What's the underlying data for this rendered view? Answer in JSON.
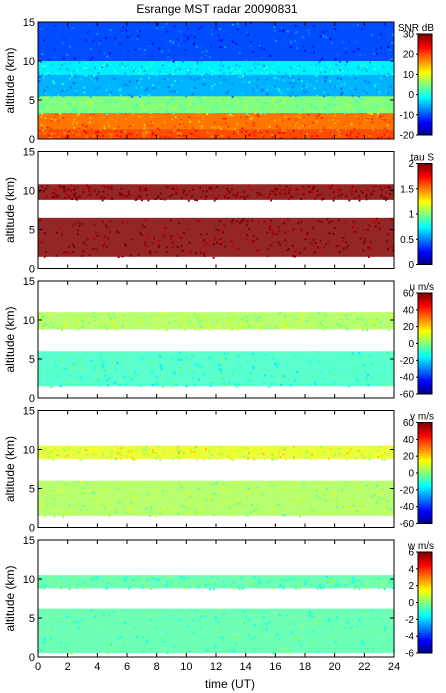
{
  "figure": {
    "title": "Esrange MST radar 20090831",
    "xlabel": "time (UT)"
  },
  "chart_data": [
    {
      "type": "heatmap",
      "id": "snr",
      "ylabel": "altitude (km)",
      "xlim": [
        0,
        24
      ],
      "ylim": [
        0,
        15
      ],
      "xticks": [
        0,
        2,
        4,
        6,
        8,
        10,
        12,
        14,
        16,
        18,
        20,
        22,
        24
      ],
      "yticks": [
        0,
        5,
        10,
        15
      ],
      "colorbar": {
        "label": "SNR dB",
        "range": [
          -20,
          30
        ],
        "ticks": [
          -20,
          -10,
          0,
          10,
          20,
          30
        ]
      },
      "layers": [
        {
          "alt": [
            0,
            1.2
          ],
          "value": 20
        },
        {
          "alt": [
            1.2,
            3.3
          ],
          "value": 18
        },
        {
          "alt": [
            3.3,
            5.5
          ],
          "value": 5
        },
        {
          "alt": [
            5.5,
            8.2
          ],
          "value": -5
        },
        {
          "alt": [
            8.2,
            10.0
          ],
          "value": -2
        },
        {
          "alt": [
            10.0,
            15
          ],
          "value": -10
        }
      ]
    },
    {
      "type": "heatmap",
      "id": "tau",
      "ylabel": "altitude (km)",
      "xlim": [
        0,
        24
      ],
      "ylim": [
        0,
        15
      ],
      "xticks": [
        0,
        2,
        4,
        6,
        8,
        10,
        12,
        14,
        16,
        18,
        20,
        22,
        24
      ],
      "yticks": [
        0,
        5,
        10,
        15
      ],
      "colorbar": {
        "label": "tau S",
        "range": [
          0,
          2
        ],
        "ticks": [
          0,
          0.5,
          1,
          1.5,
          2
        ]
      },
      "layers": [
        {
          "alt": [
            1.5,
            6.5
          ],
          "value": 2.0
        },
        {
          "alt": [
            8.8,
            10.8
          ],
          "value": 2.0
        }
      ]
    },
    {
      "type": "heatmap",
      "id": "u",
      "ylabel": "altitude (km)",
      "xlim": [
        0,
        24
      ],
      "ylim": [
        0,
        15
      ],
      "xticks": [
        0,
        2,
        4,
        6,
        8,
        10,
        12,
        14,
        16,
        18,
        20,
        22,
        24
      ],
      "yticks": [
        0,
        5,
        10,
        15
      ],
      "colorbar": {
        "label": "u m/s",
        "range": [
          -60,
          60
        ],
        "ticks": [
          -60,
          -40,
          -20,
          0,
          20,
          40,
          60
        ]
      },
      "layers": [
        {
          "alt": [
            1.5,
            6.0
          ],
          "value": -8
        },
        {
          "alt": [
            8.8,
            11.0
          ],
          "value": 5
        }
      ]
    },
    {
      "type": "heatmap",
      "id": "v",
      "ylabel": "altitude (km)",
      "xlim": [
        0,
        24
      ],
      "ylim": [
        0,
        15
      ],
      "xticks": [
        0,
        2,
        4,
        6,
        8,
        10,
        12,
        14,
        16,
        18,
        20,
        22,
        24
      ],
      "yticks": [
        0,
        5,
        10,
        15
      ],
      "colorbar": {
        "label": "v m/s",
        "range": [
          -60,
          60
        ],
        "ticks": [
          -60,
          -40,
          -20,
          0,
          20,
          40,
          60
        ]
      },
      "layers": [
        {
          "alt": [
            1.5,
            6.0
          ],
          "value": 5
        },
        {
          "alt": [
            8.8,
            10.5
          ],
          "value": 12
        }
      ]
    },
    {
      "type": "heatmap",
      "id": "w",
      "ylabel": "altitude (km)",
      "xlim": [
        0,
        24
      ],
      "ylim": [
        0,
        15
      ],
      "xticks": [
        0,
        2,
        4,
        6,
        8,
        10,
        12,
        14,
        16,
        18,
        20,
        22,
        24
      ],
      "yticks": [
        0,
        5,
        10,
        15
      ],
      "colorbar": {
        "label": "w m/s",
        "range": [
          -6,
          6
        ],
        "ticks": [
          -6,
          -4,
          -2,
          0,
          2,
          4,
          6
        ]
      },
      "layers": [
        {
          "alt": [
            0.5,
            6.2
          ],
          "value": -0.5
        },
        {
          "alt": [
            8.8,
            10.5
          ],
          "value": -0.5
        }
      ]
    }
  ]
}
